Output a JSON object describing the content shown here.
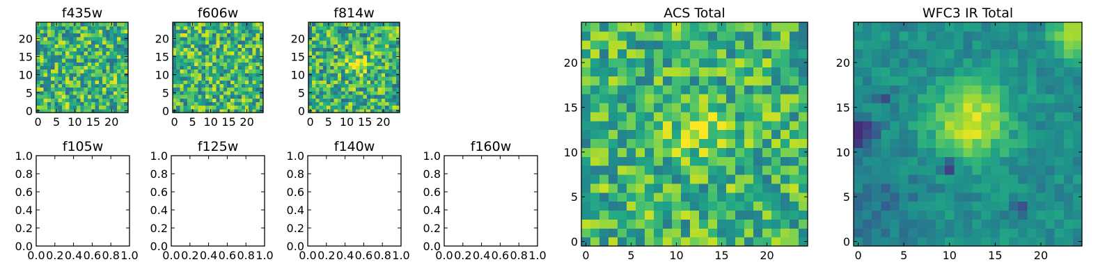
{
  "chart_data": [
    {
      "type": "heatmap",
      "title": "f435w",
      "grid": false,
      "colormap": "viridis",
      "nx": 25,
      "ny": 25,
      "xlim": [
        -0.5,
        24.5
      ],
      "ylim": [
        -0.5,
        24.5
      ],
      "xticks": [
        0,
        5,
        10,
        15,
        20
      ],
      "yticks": [
        0,
        5,
        10,
        15,
        20
      ],
      "tick_labels_x": [
        "0",
        "5",
        "10",
        "15",
        "20"
      ],
      "tick_labels_y": [
        "0",
        "5",
        "10",
        "15",
        "20"
      ],
      "value_range": [
        0,
        1
      ],
      "field": {
        "mean": 0.66,
        "noise": 0.3,
        "seed": 11,
        "blobs": []
      }
    },
    {
      "type": "heatmap",
      "title": "f606w",
      "grid": false,
      "colormap": "viridis",
      "nx": 25,
      "ny": 25,
      "xlim": [
        -0.5,
        24.5
      ],
      "ylim": [
        -0.5,
        24.5
      ],
      "xticks": [
        0,
        5,
        10,
        15,
        20
      ],
      "yticks": [
        0,
        5,
        10,
        15,
        20
      ],
      "tick_labels_x": [
        "0",
        "5",
        "10",
        "15",
        "20"
      ],
      "tick_labels_y": [
        "0",
        "5",
        "10",
        "15",
        "20"
      ],
      "value_range": [
        0,
        1
      ],
      "field": {
        "mean": 0.66,
        "noise": 0.3,
        "seed": 23,
        "blobs": []
      }
    },
    {
      "type": "heatmap",
      "title": "f814w",
      "grid": false,
      "colormap": "viridis",
      "nx": 25,
      "ny": 25,
      "xlim": [
        -0.5,
        24.5
      ],
      "ylim": [
        -0.5,
        24.5
      ],
      "xticks": [
        0,
        5,
        10,
        15,
        20
      ],
      "yticks": [
        0,
        5,
        10,
        15,
        20
      ],
      "tick_labels_x": [
        "0",
        "5",
        "10",
        "15",
        "20"
      ],
      "tick_labels_y": [
        "0",
        "5",
        "10",
        "15",
        "20"
      ],
      "value_range": [
        0,
        1
      ],
      "field": {
        "mean": 0.64,
        "noise": 0.3,
        "seed": 37,
        "blobs": [
          {
            "x": 13,
            "y": 12.5,
            "sigma": 2.2,
            "amp": 0.25
          }
        ]
      }
    },
    {
      "type": "heatmap",
      "title": "f105w",
      "empty": true,
      "xlim": [
        0,
        1
      ],
      "ylim": [
        0,
        1
      ],
      "tick_labels_x": [
        "0.0",
        "0.2",
        "0.4",
        "0.6",
        "0.8",
        "1.0"
      ],
      "tick_labels_y": [
        "0.0",
        "0.2",
        "0.4",
        "0.6",
        "0.8",
        "1.0"
      ]
    },
    {
      "type": "heatmap",
      "title": "f125w",
      "empty": true,
      "xlim": [
        0,
        1
      ],
      "ylim": [
        0,
        1
      ],
      "tick_labels_x": [
        "0.0",
        "0.2",
        "0.4",
        "0.6",
        "0.8",
        "1.0"
      ],
      "tick_labels_y": [
        "0.0",
        "0.2",
        "0.4",
        "0.6",
        "0.8",
        "1.0"
      ]
    },
    {
      "type": "heatmap",
      "title": "f140w",
      "empty": true,
      "xlim": [
        0,
        1
      ],
      "ylim": [
        0,
        1
      ],
      "tick_labels_x": [
        "0.0",
        "0.2",
        "0.4",
        "0.6",
        "0.8",
        "1.0"
      ],
      "tick_labels_y": [
        "0.0",
        "0.2",
        "0.4",
        "0.6",
        "0.8",
        "1.0"
      ]
    },
    {
      "type": "heatmap",
      "title": "f160w",
      "empty": true,
      "xlim": [
        0,
        1
      ],
      "ylim": [
        0,
        1
      ],
      "tick_labels_x": [
        "0.0",
        "0.2",
        "0.4",
        "0.6",
        "0.8",
        "1.0"
      ],
      "tick_labels_y": [
        "0.0",
        "0.2",
        "0.4",
        "0.6",
        "0.8",
        "1.0"
      ]
    },
    {
      "type": "heatmap",
      "title": "ACS Total",
      "grid": false,
      "colormap": "viridis",
      "nx": 25,
      "ny": 25,
      "xlim": [
        -0.5,
        24.5
      ],
      "ylim": [
        -0.5,
        24.5
      ],
      "xticks": [
        0,
        5,
        10,
        15,
        20
      ],
      "yticks": [
        0,
        5,
        10,
        15,
        20
      ],
      "tick_labels_x": [
        "0",
        "5",
        "10",
        "15",
        "20"
      ],
      "tick_labels_y": [
        "0",
        "5",
        "10",
        "15",
        "20"
      ],
      "value_range": [
        0,
        1
      ],
      "field": {
        "mean": 0.66,
        "noise": 0.26,
        "seed": 53,
        "blobs": [
          {
            "x": 13,
            "y": 12.5,
            "sigma": 2.5,
            "amp": 0.18
          }
        ]
      }
    },
    {
      "type": "heatmap",
      "title": "WFC3 IR Total",
      "grid": false,
      "colormap": "viridis",
      "nx": 25,
      "ny": 25,
      "xlim": [
        -0.5,
        24.5
      ],
      "ylim": [
        -0.5,
        24.5
      ],
      "xticks": [
        0,
        5,
        10,
        15,
        20
      ],
      "yticks": [
        0,
        5,
        10,
        15,
        20
      ],
      "tick_labels_x": [
        "0",
        "5",
        "10",
        "15",
        "20"
      ],
      "tick_labels_y": [
        "0",
        "5",
        "10",
        "15",
        "20"
      ],
      "value_range": [
        0,
        1
      ],
      "field": {
        "mean": 0.5,
        "noise": 0.1,
        "seed": 71,
        "blobs": [
          {
            "x": 12.5,
            "y": 13.5,
            "sigma": 2.8,
            "amp": 0.45
          },
          {
            "x": 24,
            "y": 23,
            "sigma": 1.8,
            "amp": 0.45
          },
          {
            "x": 0,
            "y": 12,
            "sigma": 1.2,
            "amp": -0.45
          },
          {
            "x": 10,
            "y": 8.5,
            "sigma": 0.7,
            "amp": -0.4
          },
          {
            "x": 3,
            "y": 16,
            "sigma": 0.6,
            "amp": -0.3
          },
          {
            "x": 18,
            "y": 4,
            "sigma": 0.6,
            "amp": -0.3
          },
          {
            "x": 2,
            "y": 4,
            "sigma": 3.5,
            "amp": -0.12
          }
        ]
      }
    }
  ]
}
